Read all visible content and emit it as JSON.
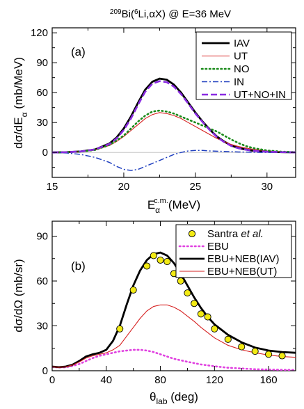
{
  "figure_title": "<tspan baseline-shift=\"super\" font-size=\"10\">209</tspan>Bi(<tspan baseline-shift=\"super\" font-size=\"10\">6</tspan>Li,αX) @ E=36 MeV",
  "title_parts": {
    "a": "209",
    "b": "Bi(",
    "c": "6",
    "d": "Li,αX) @ E=36 MeV"
  },
  "chart_data": [
    {
      "type": "line",
      "panel_label": "(a)",
      "xlabel": "E_α^c.m. (MeV)",
      "xlabel_parts": {
        "main": "E",
        "sub": "α",
        "sup": "c.m.",
        "unit": "(MeV)"
      },
      "ylabel": "dσ/dE_α (mb/MeV)",
      "ylabel_parts": {
        "main": "dσ/dE",
        "sub": "α",
        "unit": " (mb/MeV)"
      },
      "xlim": [
        15,
        32
      ],
      "ylim": [
        -25,
        125
      ],
      "xticks": [
        15,
        20,
        25,
        30
      ],
      "yticks": [
        0,
        30,
        60,
        90,
        120
      ],
      "legend_position": "top-right",
      "series": [
        {
          "name": "IAV",
          "color": "#000000",
          "style": "solid-thick",
          "x": [
            15,
            16,
            17,
            18,
            19,
            19.5,
            20,
            20.5,
            21,
            21.5,
            22,
            22.5,
            23,
            23.5,
            24,
            24.5,
            25,
            25.5,
            26,
            26.5,
            27,
            27.5,
            28,
            28.5,
            29,
            30,
            31,
            32
          ],
          "y": [
            0,
            0.3,
            1,
            3,
            9,
            15,
            24,
            36,
            50,
            63,
            71,
            74,
            73,
            68,
            60,
            50,
            40,
            31,
            23,
            16,
            11,
            7,
            4.5,
            3,
            1.8,
            0.8,
            0.3,
            0.1
          ]
        },
        {
          "name": "UT",
          "color": "#d62020",
          "style": "solid-thin",
          "x": [
            15,
            16,
            17,
            18,
            19,
            19.5,
            20,
            20.5,
            21,
            21.5,
            22,
            22.5,
            23,
            23.5,
            24,
            24.5,
            25,
            25.5,
            26,
            26.5,
            27,
            27.5,
            28,
            28.5,
            29,
            30,
            31,
            32
          ],
          "y": [
            0,
            0.2,
            0.8,
            2.5,
            7,
            11,
            16,
            22,
            28,
            34,
            38,
            40,
            39,
            37,
            34,
            30,
            26,
            22,
            18,
            14,
            11,
            8,
            6,
            4.5,
            3.2,
            1.5,
            0.6,
            0.2
          ]
        },
        {
          "name": "NO",
          "color": "#1a8a1a",
          "style": "dotted",
          "x": [
            15,
            16,
            17,
            18,
            19,
            19.5,
            20,
            20.5,
            21,
            21.5,
            22,
            22.5,
            23,
            23.5,
            24,
            24.5,
            25,
            25.5,
            26,
            26.5,
            27,
            27.5,
            28,
            28.5,
            29,
            30,
            31,
            32
          ],
          "y": [
            0,
            0.2,
            0.8,
            2.5,
            7.5,
            12,
            17,
            24,
            31,
            37,
            41,
            42,
            41,
            39,
            36,
            33,
            30,
            27,
            24,
            21,
            17,
            13,
            9.5,
            6.5,
            4.5,
            2,
            0.8,
            0.3
          ]
        },
        {
          "name": "IN",
          "color": "#1f3fbf",
          "style": "dashdot",
          "x": [
            15,
            16,
            17,
            18,
            19,
            19.5,
            20,
            20.5,
            21,
            21.5,
            22,
            22.5,
            23,
            23.5,
            24,
            24.5,
            25,
            25.5,
            26,
            27,
            28,
            29,
            30,
            31,
            32
          ],
          "y": [
            0,
            -0.5,
            -2,
            -5,
            -10,
            -14,
            -17,
            -18,
            -17,
            -14,
            -11,
            -8,
            -5,
            -2,
            0,
            1.5,
            2,
            2,
            1.5,
            1,
            0.5,
            0.2,
            0,
            0,
            0
          ]
        },
        {
          "name": "UT+NO+IN",
          "color": "#8a2be2",
          "style": "dashed",
          "x": [
            15,
            16,
            17,
            18,
            19,
            19.5,
            20,
            20.5,
            21,
            21.5,
            22,
            22.5,
            23,
            23.5,
            24,
            24.5,
            25,
            25.5,
            26,
            26.5,
            27,
            27.5,
            28,
            28.5,
            29,
            30,
            31,
            32
          ],
          "y": [
            0,
            0.3,
            1,
            3,
            8.5,
            14,
            22.5,
            34,
            48,
            61,
            69,
            71.5,
            70.5,
            66,
            58.5,
            49,
            39,
            30.5,
            22.5,
            15.5,
            10.5,
            6.5,
            4.2,
            2.8,
            1.7,
            0.7,
            0.3,
            0.1
          ]
        }
      ]
    },
    {
      "type": "line",
      "panel_label": "(b)",
      "xlabel": "θ_lab (deg)",
      "xlabel_parts": {
        "main": "θ",
        "sub": "lab",
        "unit": " (deg)"
      },
      "ylabel": "dσ/dΩ (mb/sr)",
      "xlim": [
        0,
        180
      ],
      "ylim": [
        0,
        100
      ],
      "xticks": [
        0,
        40,
        80,
        120,
        160
      ],
      "yticks": [
        0,
        30,
        60,
        90
      ],
      "legend_position": "top-right",
      "points": {
        "name": "Santra et al.",
        "name_parts": {
          "a": "Santra ",
          "b": "et al."
        },
        "color": "#f2ea14",
        "x": [
          50,
          60,
          70,
          75,
          80,
          85,
          90,
          95,
          100,
          105,
          110,
          115,
          120,
          130,
          140,
          150,
          160,
          170
        ],
        "y": [
          28,
          54,
          70,
          77,
          74,
          73,
          65,
          60,
          52,
          45,
          38,
          36,
          28,
          21,
          16,
          13,
          11,
          10
        ]
      },
      "series": [
        {
          "name": "EBU",
          "color": "#e040e0",
          "style": "dotted",
          "x": [
            0,
            5,
            10,
            15,
            20,
            25,
            30,
            35,
            40,
            45,
            50,
            55,
            60,
            65,
            70,
            75,
            80,
            85,
            90,
            100,
            110,
            120,
            130,
            140,
            150,
            160,
            170,
            180
          ],
          "y": [
            2.5,
            2.2,
            2.3,
            3.2,
            4.5,
            6.5,
            8.5,
            10,
            11,
            12,
            13,
            13.5,
            14,
            14,
            13.5,
            12.5,
            11,
            9.5,
            8,
            6,
            4.2,
            3,
            2,
            1.5,
            1,
            0.8,
            0.6,
            0.5
          ]
        },
        {
          "name": "EBU+NEB(IAV)",
          "color": "#000000",
          "style": "solid-thick",
          "x": [
            0,
            5,
            10,
            15,
            20,
            25,
            30,
            35,
            40,
            45,
            50,
            55,
            60,
            65,
            70,
            75,
            80,
            85,
            90,
            95,
            100,
            105,
            110,
            115,
            120,
            130,
            140,
            150,
            160,
            170,
            180
          ],
          "y": [
            2.8,
            2.4,
            2.8,
            4,
            6.5,
            9.5,
            11,
            12,
            14,
            20,
            30,
            44,
            57,
            67,
            74,
            78,
            79,
            77,
            72,
            65,
            57,
            49,
            42,
            36,
            31,
            24,
            19,
            15.5,
            13.5,
            12.5,
            12
          ]
        },
        {
          "name": "EBU+NEB(UT)",
          "color": "#d62020",
          "style": "solid-thin",
          "x": [
            0,
            5,
            10,
            15,
            20,
            25,
            30,
            35,
            40,
            45,
            50,
            55,
            60,
            65,
            70,
            75,
            80,
            85,
            90,
            95,
            100,
            105,
            110,
            115,
            120,
            130,
            140,
            150,
            160,
            170,
            180
          ],
          "y": [
            2.6,
            2.3,
            2.6,
            3.8,
            5.8,
            8.5,
            10,
            11,
            12,
            14,
            17,
            23,
            29,
            35,
            40,
            43,
            44,
            44,
            42.5,
            40,
            36.5,
            33,
            29,
            25.5,
            22,
            17,
            14,
            12,
            10.5,
            9.5,
            9
          ]
        }
      ]
    }
  ]
}
